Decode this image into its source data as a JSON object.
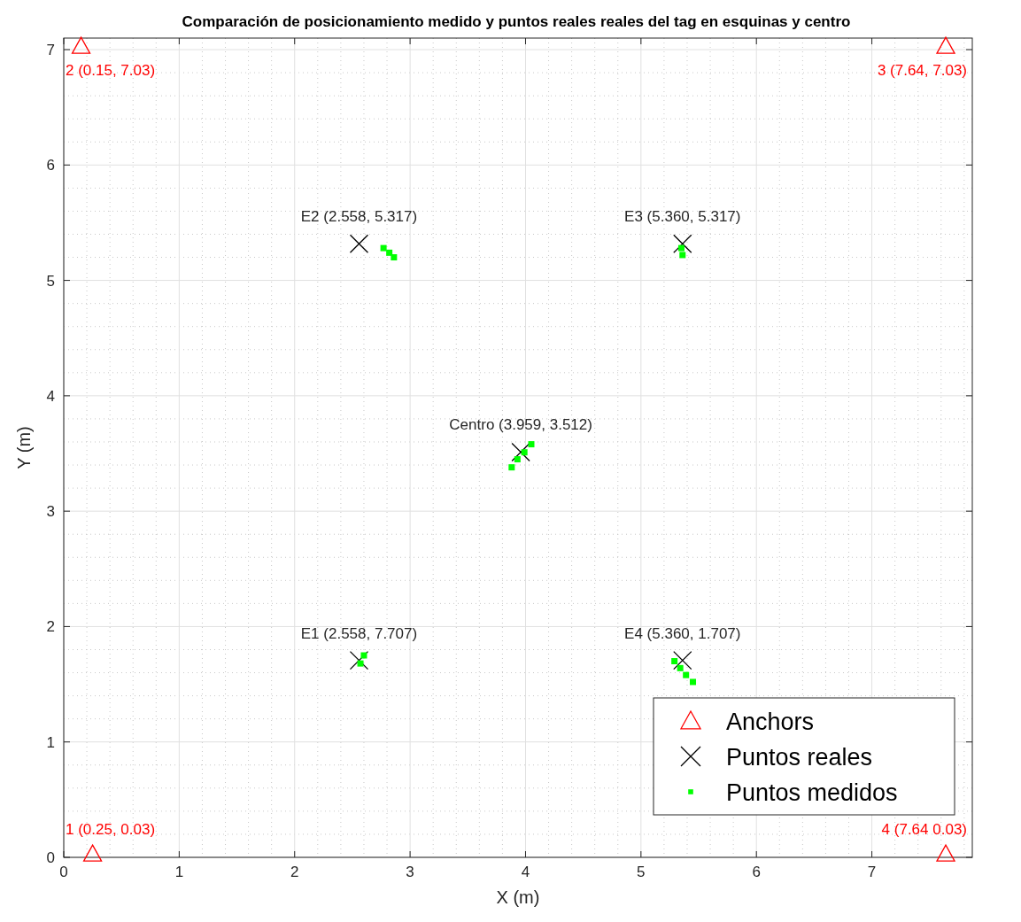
{
  "chart_data": {
    "type": "scatter",
    "title": "Comparación de posicionamiento medido y puntos reales reales del tag en esquinas y centro",
    "xlabel": "X (m)",
    "ylabel": "Y (m)",
    "xlim": [
      0,
      7.87
    ],
    "ylim": [
      0,
      7.1
    ],
    "xticks": [
      0,
      1,
      2,
      3,
      4,
      5,
      6,
      7
    ],
    "yticks": [
      0,
      1,
      2,
      3,
      4,
      5,
      6,
      7
    ],
    "grid": true,
    "legend": "bottom right",
    "series": [
      {
        "name": "Anchors",
        "color": "#ff0000",
        "marker": "triangle",
        "x": [
          0.25,
          0.15,
          7.64,
          7.64
        ],
        "values": [
          0.03,
          7.03,
          7.03,
          0.03
        ]
      },
      {
        "name": "Puntos reales",
        "color": "#000000",
        "marker": "cross",
        "x": [
          2.558,
          5.36,
          3.959,
          2.558,
          5.36
        ],
        "values": [
          5.317,
          5.317,
          3.512,
          1.707,
          1.707
        ]
      },
      {
        "name": "Puntos medidos",
        "color": "#00ff00",
        "marker": "square",
        "x": [
          2.77,
          2.82,
          2.86,
          5.35,
          5.36,
          3.88,
          3.93,
          3.99,
          4.05,
          2.57,
          2.6,
          5.29,
          5.34,
          5.39,
          5.45
        ],
        "values": [
          5.28,
          5.24,
          5.2,
          5.28,
          5.22,
          3.38,
          3.45,
          3.51,
          3.58,
          1.68,
          1.75,
          1.7,
          1.64,
          1.58,
          1.52
        ]
      }
    ],
    "annotations": [
      {
        "text": "1 (0.25, 0.03)",
        "x": 0.25,
        "y": 0.03
      },
      {
        "text": "2 (0.15, 7.03)",
        "x": 0.15,
        "y": 7.03
      },
      {
        "text": "3 (7.64, 7.03)",
        "x": 7.64,
        "y": 7.03
      },
      {
        "text": "4 (7.64 0.03)",
        "x": 7.64,
        "y": 0.03
      },
      {
        "text": "E2 (2.558, 5.317)",
        "x": 2.558,
        "y": 5.317
      },
      {
        "text": "E3 (5.360, 5.317)",
        "x": 5.36,
        "y": 5.317
      },
      {
        "text": "Centro (3.959, 3.512)",
        "x": 3.959,
        "y": 3.512
      },
      {
        "text": "E1 (2.558, 7.707)",
        "x": 2.558,
        "y": 1.707
      },
      {
        "text": "E4 (5.360, 1.707)",
        "x": 5.36,
        "y": 1.707
      }
    ]
  }
}
